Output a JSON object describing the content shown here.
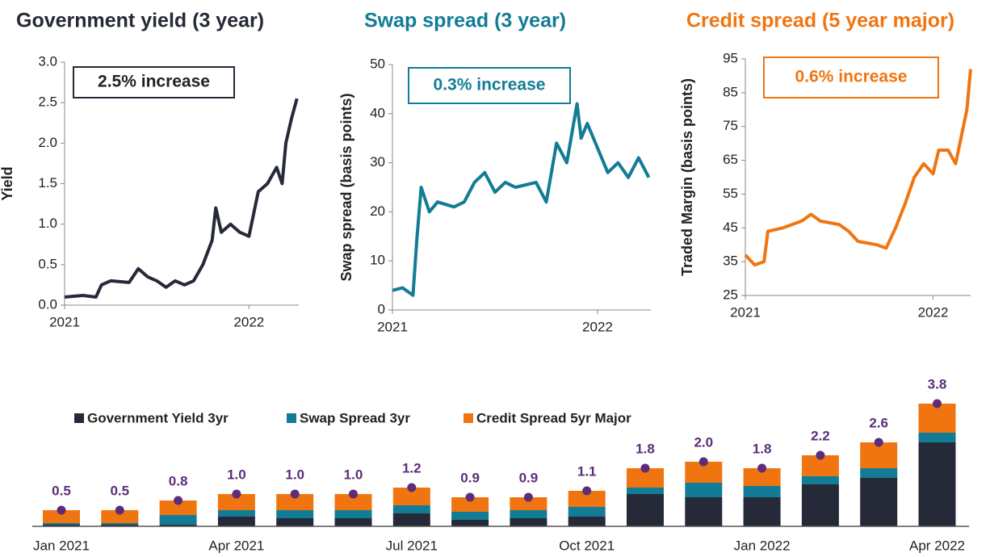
{
  "chart_data": [
    {
      "type": "line",
      "title": "Government yield (3 year)",
      "ylabel": "Yield",
      "annotation": "2.5% increase",
      "color": "#262a38",
      "x": [
        2021.0,
        2021.1,
        2021.17,
        2021.2,
        2021.25,
        2021.35,
        2021.4,
        2021.45,
        2021.5,
        2021.55,
        2021.6,
        2021.65,
        2021.7,
        2021.75,
        2021.8,
        2021.82,
        2021.85,
        2021.9,
        2021.95,
        2022.0,
        2022.05,
        2022.1,
        2022.15,
        2022.18,
        2022.2,
        2022.23,
        2022.26
      ],
      "values": [
        0.1,
        0.12,
        0.1,
        0.25,
        0.3,
        0.28,
        0.45,
        0.35,
        0.3,
        0.22,
        0.3,
        0.25,
        0.3,
        0.5,
        0.8,
        1.2,
        0.9,
        1.0,
        0.9,
        0.85,
        1.4,
        1.5,
        1.7,
        1.5,
        2.0,
        2.3,
        2.55
      ],
      "xlim": [
        2021,
        2022.27
      ],
      "xticks": [
        2021,
        2022
      ],
      "ylim": [
        0,
        3
      ],
      "yticks": [
        {
          "value": 0,
          "label": "0.0"
        },
        0.5,
        {
          "value": 1,
          "label": "1.0"
        },
        1.5,
        {
          "value": 2,
          "label": "2.0"
        },
        2.5,
        {
          "value": 3,
          "label": "3.0"
        }
      ]
    },
    {
      "type": "line",
      "title": "Swap spread (3 year)",
      "ylabel": "Swap spread (basis points)",
      "annotation": "0.3% increase",
      "color": "#127c96",
      "x": [
        2021.0,
        2021.05,
        2021.1,
        2021.12,
        2021.14,
        2021.18,
        2021.22,
        2021.3,
        2021.35,
        2021.4,
        2021.45,
        2021.5,
        2021.55,
        2021.6,
        2021.7,
        2021.75,
        2021.8,
        2021.85,
        2021.9,
        2021.92,
        2021.95,
        2022.0,
        2022.05,
        2022.1,
        2022.15,
        2022.2,
        2022.25
      ],
      "values": [
        4,
        4.5,
        3,
        15,
        25,
        20,
        22,
        21,
        22,
        26,
        28,
        24,
        26,
        25,
        26,
        22,
        34,
        30,
        42,
        35,
        38,
        33,
        28,
        30,
        27,
        31,
        27
      ],
      "xlim": [
        2021,
        2022.26
      ],
      "xticks": [
        2021,
        2022
      ],
      "ylim": [
        0,
        50
      ],
      "yticks": [
        0,
        10,
        20,
        30,
        40,
        50
      ]
    },
    {
      "type": "line",
      "title": "Credit spread (5 year major)",
      "ylabel": "Traded Margin (basis points)",
      "annotation": "0.6% increase",
      "color": "#f07511",
      "x": [
        2021.0,
        2021.05,
        2021.1,
        2021.12,
        2021.2,
        2021.3,
        2021.35,
        2021.4,
        2021.5,
        2021.55,
        2021.6,
        2021.7,
        2021.75,
        2021.8,
        2021.85,
        2021.9,
        2021.95,
        2022.0,
        2022.03,
        2022.08,
        2022.12,
        2022.15,
        2022.18,
        2022.2
      ],
      "values": [
        37,
        34,
        35,
        44,
        45,
        47,
        49,
        47,
        46,
        44,
        41,
        40,
        39,
        45,
        52,
        60,
        64,
        61,
        68,
        68,
        64,
        72,
        80,
        92
      ],
      "xlim": [
        2021,
        2022.2
      ],
      "xticks": [
        2021,
        2022
      ],
      "ylim": [
        25,
        95
      ],
      "yticks": [
        25,
        35,
        45,
        55,
        65,
        75,
        85,
        95
      ]
    },
    {
      "type": "bar",
      "stacked": true,
      "legend": "top",
      "categories": [
        "Jan 2021",
        null,
        null,
        "Apr 2021",
        null,
        null,
        "Jul 2021",
        null,
        null,
        "Oct 2021",
        null,
        null,
        "Jan 2022",
        null,
        null,
        "Apr 2022"
      ],
      "ylim": [
        0,
        4.5
      ],
      "series": [
        {
          "name": "Government Yield 3yr",
          "color": "#262a38",
          "values": [
            0.05,
            0.05,
            0.05,
            0.3,
            0.25,
            0.25,
            0.4,
            0.2,
            0.25,
            0.3,
            1.0,
            0.9,
            0.9,
            1.3,
            1.5,
            2.6
          ]
        },
        {
          "name": "Swap Spread 3yr",
          "color": "#127c96",
          "values": [
            0.05,
            0.05,
            0.3,
            0.2,
            0.25,
            0.25,
            0.25,
            0.25,
            0.25,
            0.3,
            0.2,
            0.45,
            0.35,
            0.25,
            0.3,
            0.3
          ]
        },
        {
          "name": "Credit Spread 5yr Major",
          "color": "#f07511",
          "values": [
            0.4,
            0.4,
            0.45,
            0.5,
            0.5,
            0.5,
            0.55,
            0.45,
            0.4,
            0.5,
            0.6,
            0.65,
            0.55,
            0.65,
            0.8,
            0.9
          ]
        }
      ],
      "totals": {
        "color": "#5b2d7a",
        "values": [
          0.5,
          0.5,
          0.8,
          1,
          1,
          1,
          1.2,
          0.9,
          0.9,
          1.1,
          1.8,
          2,
          1.8,
          2.2,
          2.6,
          3.8
        ],
        "value_labels": [
          "0.5",
          "0.5",
          "0.8",
          "1.0",
          "1.0",
          "1.0",
          "1.2",
          "0.9",
          "0.9",
          "1.1",
          "1.8",
          "2.0",
          "1.8",
          "2.2",
          "2.6",
          "3.8"
        ]
      }
    }
  ]
}
